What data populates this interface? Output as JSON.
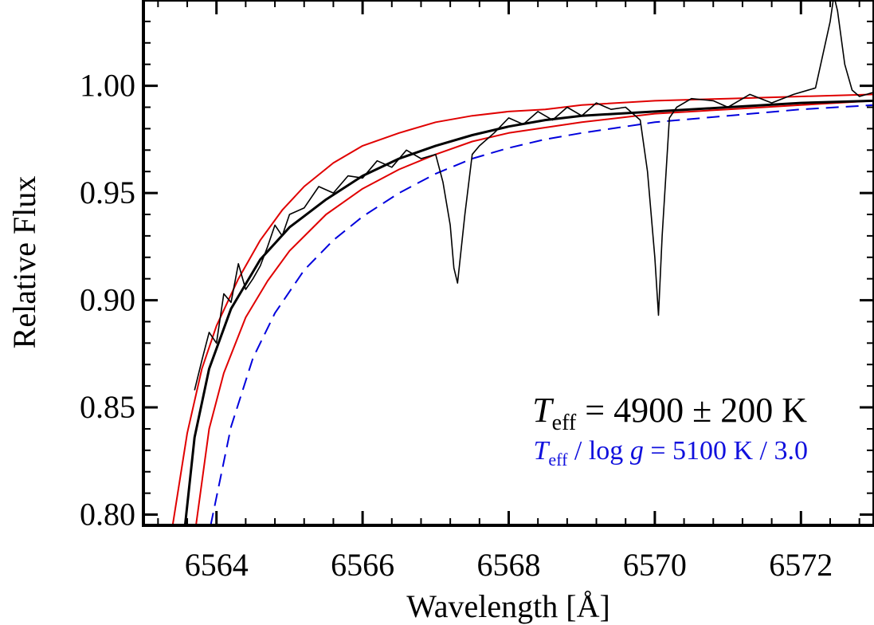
{
  "chart_data": {
    "type": "line",
    "xlabel": "Wavelength [Å]",
    "ylabel": "Relative Flux",
    "xlim": [
      6563.0,
      6573.0
    ],
    "ylim": [
      0.795,
      1.04
    ],
    "x_ticks": [
      6564,
      6566,
      6568,
      6570,
      6572
    ],
    "x_tick_labels": [
      "6564",
      "6566",
      "6568",
      "6570",
      "6572"
    ],
    "y_ticks": [
      0.8,
      0.85,
      0.9,
      0.95,
      1.0
    ],
    "y_tick_labels": [
      "0.80",
      "0.85",
      "0.90",
      "0.95",
      "1.00"
    ],
    "grid": false,
    "annotations": {
      "teff_symbol": "T",
      "teff_subscript": "eff",
      "teff_value": " = 4900 ± 200 K",
      "model_symbol": "T",
      "model_subscript": "eff",
      "model_sep": " / log ",
      "model_g": "g",
      "model_value": " = 5100 K / 3.0"
    },
    "series": [
      {
        "style": "observed",
        "color": "#000000",
        "x": [
          6563.7,
          6563.8,
          6563.9,
          6564.0,
          6564.1,
          6564.2,
          6564.3,
          6564.4,
          6564.5,
          6564.6,
          6564.7,
          6564.8,
          6564.9,
          6565.0,
          6565.2,
          6565.4,
          6565.6,
          6565.8,
          6566.0,
          6566.2,
          6566.4,
          6566.6,
          6566.8,
          6567.0,
          6567.1,
          6567.2,
          6567.25,
          6567.3,
          6567.4,
          6567.5,
          6567.6,
          6567.8,
          6568.0,
          6568.2,
          6568.4,
          6568.6,
          6568.8,
          6569.0,
          6569.2,
          6569.4,
          6569.6,
          6569.8,
          6569.9,
          6570.0,
          6570.05,
          6570.1,
          6570.2,
          6570.3,
          6570.5,
          6570.8,
          6571.0,
          6571.3,
          6571.6,
          6571.9,
          6572.2,
          6572.4,
          6572.45,
          6572.5,
          6572.6,
          6572.7,
          6572.8,
          6573.0
        ],
        "y": [
          0.858,
          0.872,
          0.885,
          0.88,
          0.903,
          0.899,
          0.917,
          0.905,
          0.91,
          0.916,
          0.925,
          0.935,
          0.93,
          0.94,
          0.943,
          0.953,
          0.95,
          0.958,
          0.957,
          0.965,
          0.962,
          0.97,
          0.966,
          0.968,
          0.955,
          0.935,
          0.915,
          0.908,
          0.94,
          0.968,
          0.972,
          0.978,
          0.985,
          0.982,
          0.988,
          0.984,
          0.99,
          0.986,
          0.992,
          0.989,
          0.99,
          0.984,
          0.96,
          0.92,
          0.893,
          0.93,
          0.985,
          0.99,
          0.994,
          0.993,
          0.99,
          0.996,
          0.992,
          0.996,
          0.999,
          1.03,
          1.042,
          1.035,
          1.01,
          0.998,
          0.995,
          0.997
        ]
      },
      {
        "style": "best-fit",
        "color": "#000000",
        "x": [
          6563.57,
          6563.7,
          6563.9,
          6564.2,
          6564.6,
          6565.0,
          6565.5,
          6566.0,
          6566.5,
          6567.0,
          6567.5,
          6568.0,
          6568.5,
          6569.0,
          6570.0,
          6571.0,
          6572.0,
          6573.0
        ],
        "y": [
          0.795,
          0.836,
          0.868,
          0.896,
          0.919,
          0.934,
          0.947,
          0.958,
          0.966,
          0.972,
          0.977,
          0.981,
          0.984,
          0.986,
          0.988,
          0.99,
          0.992,
          0.993
        ]
      },
      {
        "style": "upper-bound",
        "color": "#e00000",
        "x": [
          6563.4,
          6563.6,
          6563.8,
          6564.0,
          6564.3,
          6564.6,
          6564.9,
          6565.2,
          6565.6,
          6566.0,
          6566.5,
          6567.0,
          6567.5,
          6568.0,
          6568.5,
          6569.0,
          6570.0,
          6571.0,
          6572.0,
          6573.0
        ],
        "y": [
          0.795,
          0.838,
          0.868,
          0.888,
          0.91,
          0.928,
          0.942,
          0.953,
          0.964,
          0.972,
          0.978,
          0.983,
          0.986,
          0.988,
          0.989,
          0.991,
          0.993,
          0.994,
          0.995,
          0.996
        ]
      },
      {
        "style": "lower-bound",
        "color": "#e00000",
        "x": [
          6563.72,
          6563.9,
          6564.1,
          6564.4,
          6564.7,
          6565.0,
          6565.5,
          6566.0,
          6566.5,
          6567.0,
          6567.5,
          6568.0,
          6569.0,
          6570.0,
          6571.0,
          6572.0,
          6573.0
        ],
        "y": [
          0.795,
          0.84,
          0.866,
          0.892,
          0.909,
          0.923,
          0.94,
          0.952,
          0.961,
          0.968,
          0.974,
          0.978,
          0.983,
          0.987,
          0.989,
          0.991,
          0.993
        ]
      },
      {
        "style": "model-dashed",
        "color": "#0000dd",
        "x": [
          6563.92,
          6564.2,
          6564.5,
          6564.8,
          6565.2,
          6565.6,
          6566.0,
          6566.5,
          6567.0,
          6567.5,
          6568.0,
          6568.5,
          6569.0,
          6570.0,
          6571.0,
          6572.0,
          6573.0
        ],
        "y": [
          0.795,
          0.841,
          0.873,
          0.894,
          0.914,
          0.928,
          0.939,
          0.95,
          0.959,
          0.966,
          0.971,
          0.975,
          0.978,
          0.983,
          0.986,
          0.989,
          0.991
        ]
      }
    ]
  }
}
